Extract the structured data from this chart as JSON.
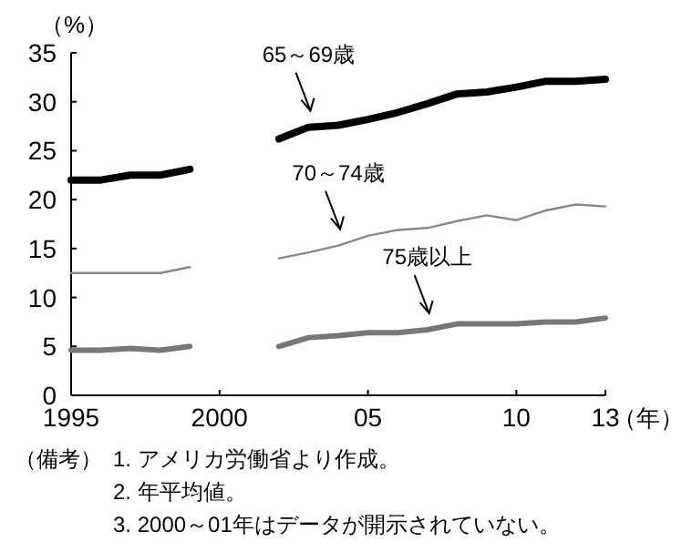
{
  "chart_data": {
    "type": "line",
    "ylabel": "（%）",
    "xlabel": "（年）",
    "x": [
      1995,
      1996,
      1997,
      1998,
      1999,
      2000,
      2001,
      2002,
      2003,
      2004,
      2005,
      2006,
      2007,
      2008,
      2009,
      2010,
      2011,
      2012,
      2013
    ],
    "series": [
      {
        "name": "65～69歳",
        "color": "#000000",
        "values": [
          22.0,
          22.0,
          22.5,
          22.5,
          23.1,
          null,
          null,
          26.2,
          27.4,
          27.6,
          28.2,
          28.9,
          29.8,
          30.8,
          31.0,
          31.5,
          32.1,
          32.1,
          32.3
        ]
      },
      {
        "name": "70～74歳",
        "color": "#888888",
        "values": [
          12.5,
          12.5,
          12.5,
          12.5,
          13.1,
          null,
          null,
          14.0,
          14.6,
          15.3,
          16.3,
          16.9,
          17.1,
          17.8,
          18.4,
          17.9,
          18.9,
          19.5,
          19.3
        ]
      },
      {
        "name": "75歳以上",
        "color": "#777777",
        "values": [
          4.6,
          4.6,
          4.8,
          4.6,
          5.0,
          null,
          null,
          5.0,
          5.9,
          6.1,
          6.4,
          6.4,
          6.7,
          7.3,
          7.3,
          7.3,
          7.5,
          7.5,
          7.9
        ]
      }
    ],
    "xlim": [
      1995,
      2013
    ],
    "xticks": [
      1995,
      2000,
      {
        "value": 2005,
        "label": "05"
      },
      {
        "value": 2010,
        "label": "10"
      },
      {
        "value": 2013,
        "label": "13"
      }
    ],
    "ylim": [
      0,
      35
    ],
    "yticks": [
      0,
      5,
      10,
      15,
      20,
      25,
      30,
      35
    ],
    "grid": false,
    "marker": "none",
    "line_style": "solid",
    "annotations": [
      "（備考）",
      "1. アメリカ労働省より作成。",
      "2. 年平均値。",
      "3. 2000～01年はデータが開示されていない。"
    ]
  }
}
